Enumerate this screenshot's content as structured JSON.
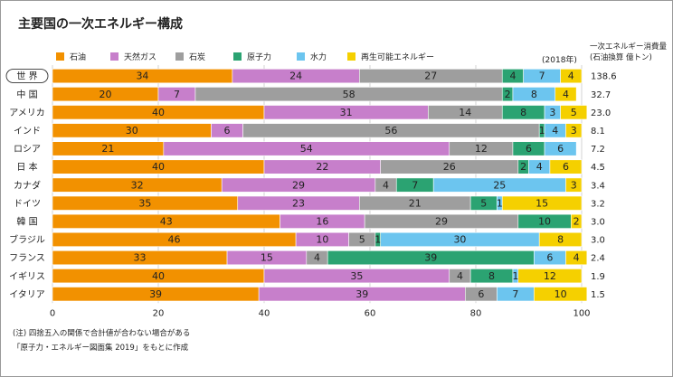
{
  "title": "主要国の一次エネルギー構成",
  "year_note": "(2018年)",
  "consumption_header": [
    "一次エネルギー消費量",
    "(石油換算 億トン)"
  ],
  "notes": [
    "(注) 四捨五入の関係で合計値が合わない場合がある",
    "「原子力・エネルギー図面集 2019」をもとに作成"
  ],
  "chart_data": {
    "type": "bar",
    "orientation": "horizontal",
    "stacked": true,
    "title": "主要国の一次エネルギー構成",
    "categories": [
      "世界",
      "中国",
      "アメリカ",
      "インド",
      "ロシア",
      "日本",
      "カナダ",
      "ドイツ",
      "韓国",
      "ブラジル",
      "フランス",
      "イギリス",
      "イタリア"
    ],
    "category_labels": [
      "世 界",
      "中 国",
      "アメリカ",
      "インド",
      "ロシア",
      "日 本",
      "カナダ",
      "ドイツ",
      "韓 国",
      "ブラジル",
      "フランス",
      "イギリス",
      "イタリア"
    ],
    "highlighted_category": "世界",
    "series": [
      {
        "name": "石油",
        "color": "#F29100",
        "values": [
          34,
          20,
          40,
          30,
          21,
          40,
          32,
          35,
          43,
          46,
          33,
          40,
          39
        ]
      },
      {
        "name": "天然ガス",
        "color": "#C77FCB",
        "values": [
          24,
          7,
          31,
          6,
          54,
          22,
          29,
          23,
          16,
          10,
          15,
          35,
          39
        ]
      },
      {
        "name": "石炭",
        "color": "#9E9E9E",
        "values": [
          27,
          58,
          14,
          56,
          12,
          26,
          4,
          21,
          29,
          5,
          4,
          4,
          6
        ]
      },
      {
        "name": "原子力",
        "color": "#2BA372",
        "values": [
          4,
          2,
          8,
          1,
          6,
          2,
          7,
          5,
          10,
          1,
          39,
          8,
          0
        ]
      },
      {
        "name": "水力",
        "color": "#6CC5EF",
        "values": [
          7,
          8,
          3,
          4,
          6,
          4,
          25,
          1,
          0,
          30,
          6,
          1,
          7
        ]
      },
      {
        "name": "再生可能エネルギー",
        "color": "#F5D000",
        "values": [
          4,
          4,
          5,
          3,
          0,
          6,
          3,
          15,
          2,
          8,
          4,
          12,
          10
        ]
      }
    ],
    "value_labels": [
      [
        "34",
        "24",
        "27",
        "4",
        "7",
        "4"
      ],
      [
        "20",
        "7",
        "58",
        "2",
        "8",
        "4"
      ],
      [
        "40",
        "31",
        "14",
        "8",
        "3",
        "5"
      ],
      [
        "30",
        "6",
        "56",
        "1",
        "4",
        "3"
      ],
      [
        "21",
        "54",
        "12",
        "6",
        "6",
        ""
      ],
      [
        "40",
        "22",
        "26",
        "2",
        "4",
        "6"
      ],
      [
        "32",
        "29",
        "4",
        "7",
        "25",
        "3"
      ],
      [
        "35",
        "23",
        "21",
        "5",
        "1",
        "15"
      ],
      [
        "43",
        "16",
        "29",
        "10",
        "",
        "2"
      ],
      [
        "46",
        "10",
        "5",
        "1",
        "30",
        "8"
      ],
      [
        "33",
        "15",
        "4",
        "39",
        "6",
        "4"
      ],
      [
        "40",
        "35",
        "4",
        "8",
        "1",
        "12"
      ],
      [
        "39",
        "39",
        "6",
        "",
        "7",
        "10"
      ]
    ],
    "consumption": [
      "138.6",
      "32.7",
      "23.0",
      "8.1",
      "7.2",
      "4.5",
      "3.4",
      "3.2",
      "3.0",
      "3.0",
      "2.4",
      "1.9",
      "1.5"
    ],
    "xlim": [
      0,
      100
    ],
    "xticks": [
      "0",
      "20",
      "40",
      "60",
      "80",
      "100"
    ],
    "grid": "vertical",
    "legend_position": "top"
  }
}
